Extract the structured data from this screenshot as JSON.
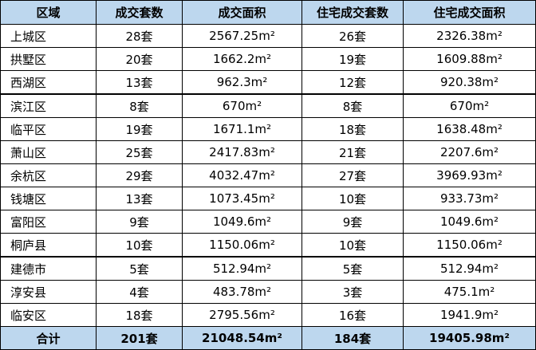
{
  "table": {
    "headers": [
      "区域",
      "成交套数",
      "成交面积",
      "住宅成交套数",
      "住宅成交面积"
    ],
    "rows": [
      [
        "上城区",
        "28套",
        "2567.25m²",
        "26套",
        "2326.38m²"
      ],
      [
        "拱墅区",
        "20套",
        "1662.2m²",
        "19套",
        "1609.88m²"
      ],
      [
        "西湖区",
        "13套",
        "962.3m²",
        "12套",
        "920.38m²"
      ],
      [
        "滨江区",
        "8套",
        "670m²",
        "8套",
        "670m²"
      ],
      [
        "临平区",
        "19套",
        "1671.1m²",
        "18套",
        "1638.48m²"
      ],
      [
        "萧山区",
        "25套",
        "2417.83m²",
        "21套",
        "2207.6m²"
      ],
      [
        "余杭区",
        "29套",
        "4032.47m²",
        "27套",
        "3969.93m²"
      ],
      [
        "钱塘区",
        "13套",
        "1073.45m²",
        "10套",
        "933.73m²"
      ],
      [
        "富阳区",
        "9套",
        "1049.6m²",
        "9套",
        "1049.6m²"
      ],
      [
        "桐庐县",
        "10套",
        "1150.06m²",
        "10套",
        "1150.06m²"
      ],
      [
        "建德市",
        "5套",
        "512.94m²",
        "5套",
        "512.94m²"
      ],
      [
        "淳安县",
        "4套",
        "483.78m²",
        "3套",
        "475.1m²"
      ],
      [
        "临安区",
        "18套",
        "2795.56m²",
        "16套",
        "1941.9m²"
      ]
    ],
    "total": [
      "合计",
      "201套",
      "21048.54m²",
      "184套",
      "19405.98m²"
    ],
    "colors": {
      "header_bg": "#bdd7ee",
      "total_bg": "#bdd7ee",
      "border": "#000000"
    }
  }
}
